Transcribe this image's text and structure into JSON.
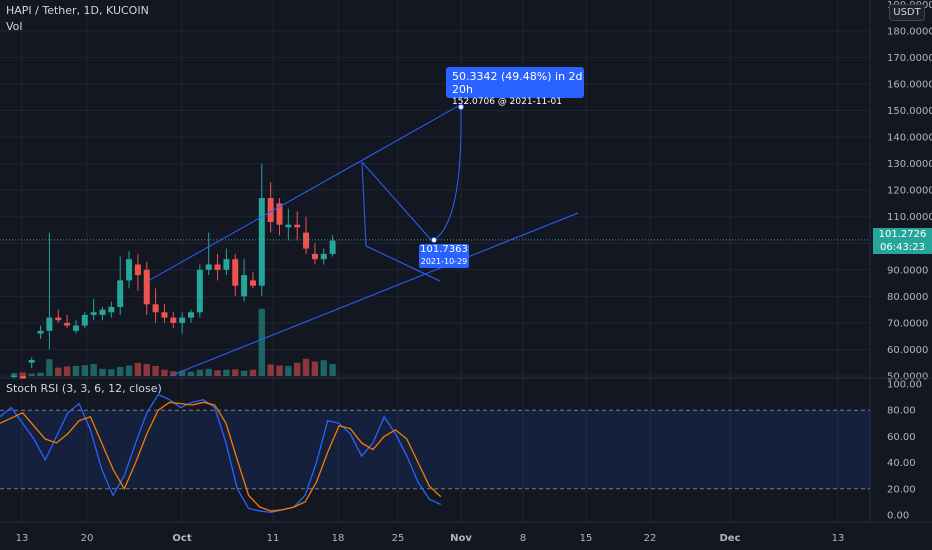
{
  "header": {
    "symbol": "HAPI / Tether, 1D, KUCOIN",
    "volume_label": "Vol",
    "currency_button": "USDT"
  },
  "indicator": {
    "label": "Stoch RSI (3, 3, 6, 12, close)",
    "levels": [
      100,
      80,
      60,
      40,
      20,
      0
    ],
    "level_labels": [
      "100.00",
      "80.00",
      "60.00",
      "40.00",
      "20.00",
      "0.00"
    ]
  },
  "price_axis": {
    "labels": [
      "180.0000",
      "170.0000",
      "160.0000",
      "150.0000",
      "140.0000",
      "130.0000",
      "120.0000",
      "110.0000",
      "100.0000",
      "90.0000",
      "80.0000",
      "70.0000",
      "60.0000",
      "50.0000"
    ],
    "values": [
      180,
      170,
      160,
      150,
      140,
      130,
      120,
      110,
      100,
      90,
      80,
      70,
      60,
      50
    ],
    "top_partial_label": "190.0000"
  },
  "time_axis": {
    "labels": [
      "13",
      "20",
      "Oct",
      "11",
      "18",
      "25",
      "Nov",
      "8",
      "15",
      "22",
      "Dec",
      "13"
    ],
    "bold": [
      "Oct",
      "Nov",
      "Dec"
    ]
  },
  "current_price": {
    "value": "101.2726",
    "countdown": "06:43:23",
    "color": "#26a69a"
  },
  "measure_tag": {
    "main": "50.3342 (49.48%) in 2d 20h",
    "sub": "152.0706 @ 2021-11-01",
    "color": "#2962ff"
  },
  "start_tag": {
    "main": "101.7363",
    "sub": "2021-10-29",
    "color": "#2962ff"
  },
  "colors": {
    "up": "#26a69a",
    "down": "#ef5350",
    "line": "#2962ff",
    "orange": "#f57c00",
    "background": "#131722"
  },
  "chart_data": {
    "type": "candlestick",
    "ylim": [
      50,
      180
    ],
    "candles": [
      {
        "o": 50,
        "h": 51,
        "l": 49,
        "c": 50
      },
      {
        "o": 50,
        "h": 50,
        "l": 49,
        "c": 49
      },
      {
        "o": 55,
        "h": 57,
        "l": 53,
        "c": 56
      },
      {
        "o": 66,
        "h": 69,
        "l": 64,
        "c": 67
      },
      {
        "o": 67,
        "h": 104,
        "l": 60,
        "c": 72
      },
      {
        "o": 72,
        "h": 75,
        "l": 70,
        "c": 71
      },
      {
        "o": 70,
        "h": 73,
        "l": 68,
        "c": 69
      },
      {
        "o": 67,
        "h": 71,
        "l": 66,
        "c": 69
      },
      {
        "o": 69,
        "h": 74,
        "l": 68,
        "c": 73
      },
      {
        "o": 73,
        "h": 79,
        "l": 71,
        "c": 74
      },
      {
        "o": 73,
        "h": 76,
        "l": 71,
        "c": 75
      },
      {
        "o": 74,
        "h": 78,
        "l": 72,
        "c": 76
      },
      {
        "o": 76,
        "h": 95,
        "l": 73,
        "c": 86
      },
      {
        "o": 86,
        "h": 97,
        "l": 83,
        "c": 94
      },
      {
        "o": 92,
        "h": 96,
        "l": 82,
        "c": 88
      },
      {
        "o": 90,
        "h": 93,
        "l": 73,
        "c": 77
      },
      {
        "o": 77,
        "h": 83,
        "l": 70,
        "c": 74
      },
      {
        "o": 74,
        "h": 77,
        "l": 70,
        "c": 72
      },
      {
        "o": 72,
        "h": 74,
        "l": 68,
        "c": 70
      },
      {
        "o": 70,
        "h": 74,
        "l": 66,
        "c": 72
      },
      {
        "o": 72,
        "h": 75,
        "l": 70,
        "c": 74
      },
      {
        "o": 74,
        "h": 92,
        "l": 72,
        "c": 90
      },
      {
        "o": 90,
        "h": 104,
        "l": 88,
        "c": 92
      },
      {
        "o": 92,
        "h": 96,
        "l": 86,
        "c": 90
      },
      {
        "o": 90,
        "h": 98,
        "l": 88,
        "c": 94
      },
      {
        "o": 94,
        "h": 96,
        "l": 80,
        "c": 84
      },
      {
        "o": 80,
        "h": 94,
        "l": 78,
        "c": 88
      },
      {
        "o": 86,
        "h": 89,
        "l": 83,
        "c": 84
      },
      {
        "o": 84,
        "h": 130,
        "l": 80,
        "c": 117
      },
      {
        "o": 117,
        "h": 123,
        "l": 104,
        "c": 108
      },
      {
        "o": 115,
        "h": 117,
        "l": 103,
        "c": 107
      },
      {
        "o": 106,
        "h": 113,
        "l": 101,
        "c": 107
      },
      {
        "o": 107,
        "h": 112,
        "l": 101,
        "c": 106
      },
      {
        "o": 104,
        "h": 110,
        "l": 96,
        "c": 98
      },
      {
        "o": 96,
        "h": 100,
        "l": 92,
        "c": 94
      },
      {
        "o": 94,
        "h": 98,
        "l": 92,
        "c": 96
      },
      {
        "o": 96,
        "h": 103,
        "l": 95,
        "c": 101
      }
    ],
    "volume_rel": [
      0.12,
      0.15,
      0.1,
      0.14,
      0.7,
      0.35,
      0.4,
      0.42,
      0.45,
      0.5,
      0.3,
      0.28,
      0.38,
      0.44,
      0.55,
      0.5,
      0.42,
      0.26,
      0.2,
      0.22,
      0.18,
      0.26,
      0.3,
      0.24,
      0.26,
      0.28,
      0.22,
      0.26,
      2.8,
      0.48,
      0.44,
      0.42,
      0.55,
      0.72,
      0.6,
      0.66,
      0.5
    ],
    "volume_ratio_note": "",
    "stoch_k": [
      75,
      82,
      70,
      58,
      42,
      60,
      78,
      85,
      65,
      35,
      15,
      30,
      55,
      78,
      92,
      88,
      82,
      86,
      88,
      82,
      55,
      20,
      5,
      3,
      2,
      4,
      6,
      15,
      40,
      72,
      70,
      62,
      45,
      55,
      75,
      62,
      45,
      25,
      12,
      8
    ],
    "stoch_d": [
      70,
      74,
      78,
      68,
      58,
      55,
      62,
      72,
      75,
      55,
      35,
      20,
      40,
      62,
      80,
      86,
      85,
      84,
      86,
      84,
      70,
      42,
      15,
      6,
      3,
      4,
      6,
      10,
      25,
      48,
      68,
      66,
      55,
      50,
      60,
      65,
      58,
      40,
      22,
      14
    ]
  }
}
